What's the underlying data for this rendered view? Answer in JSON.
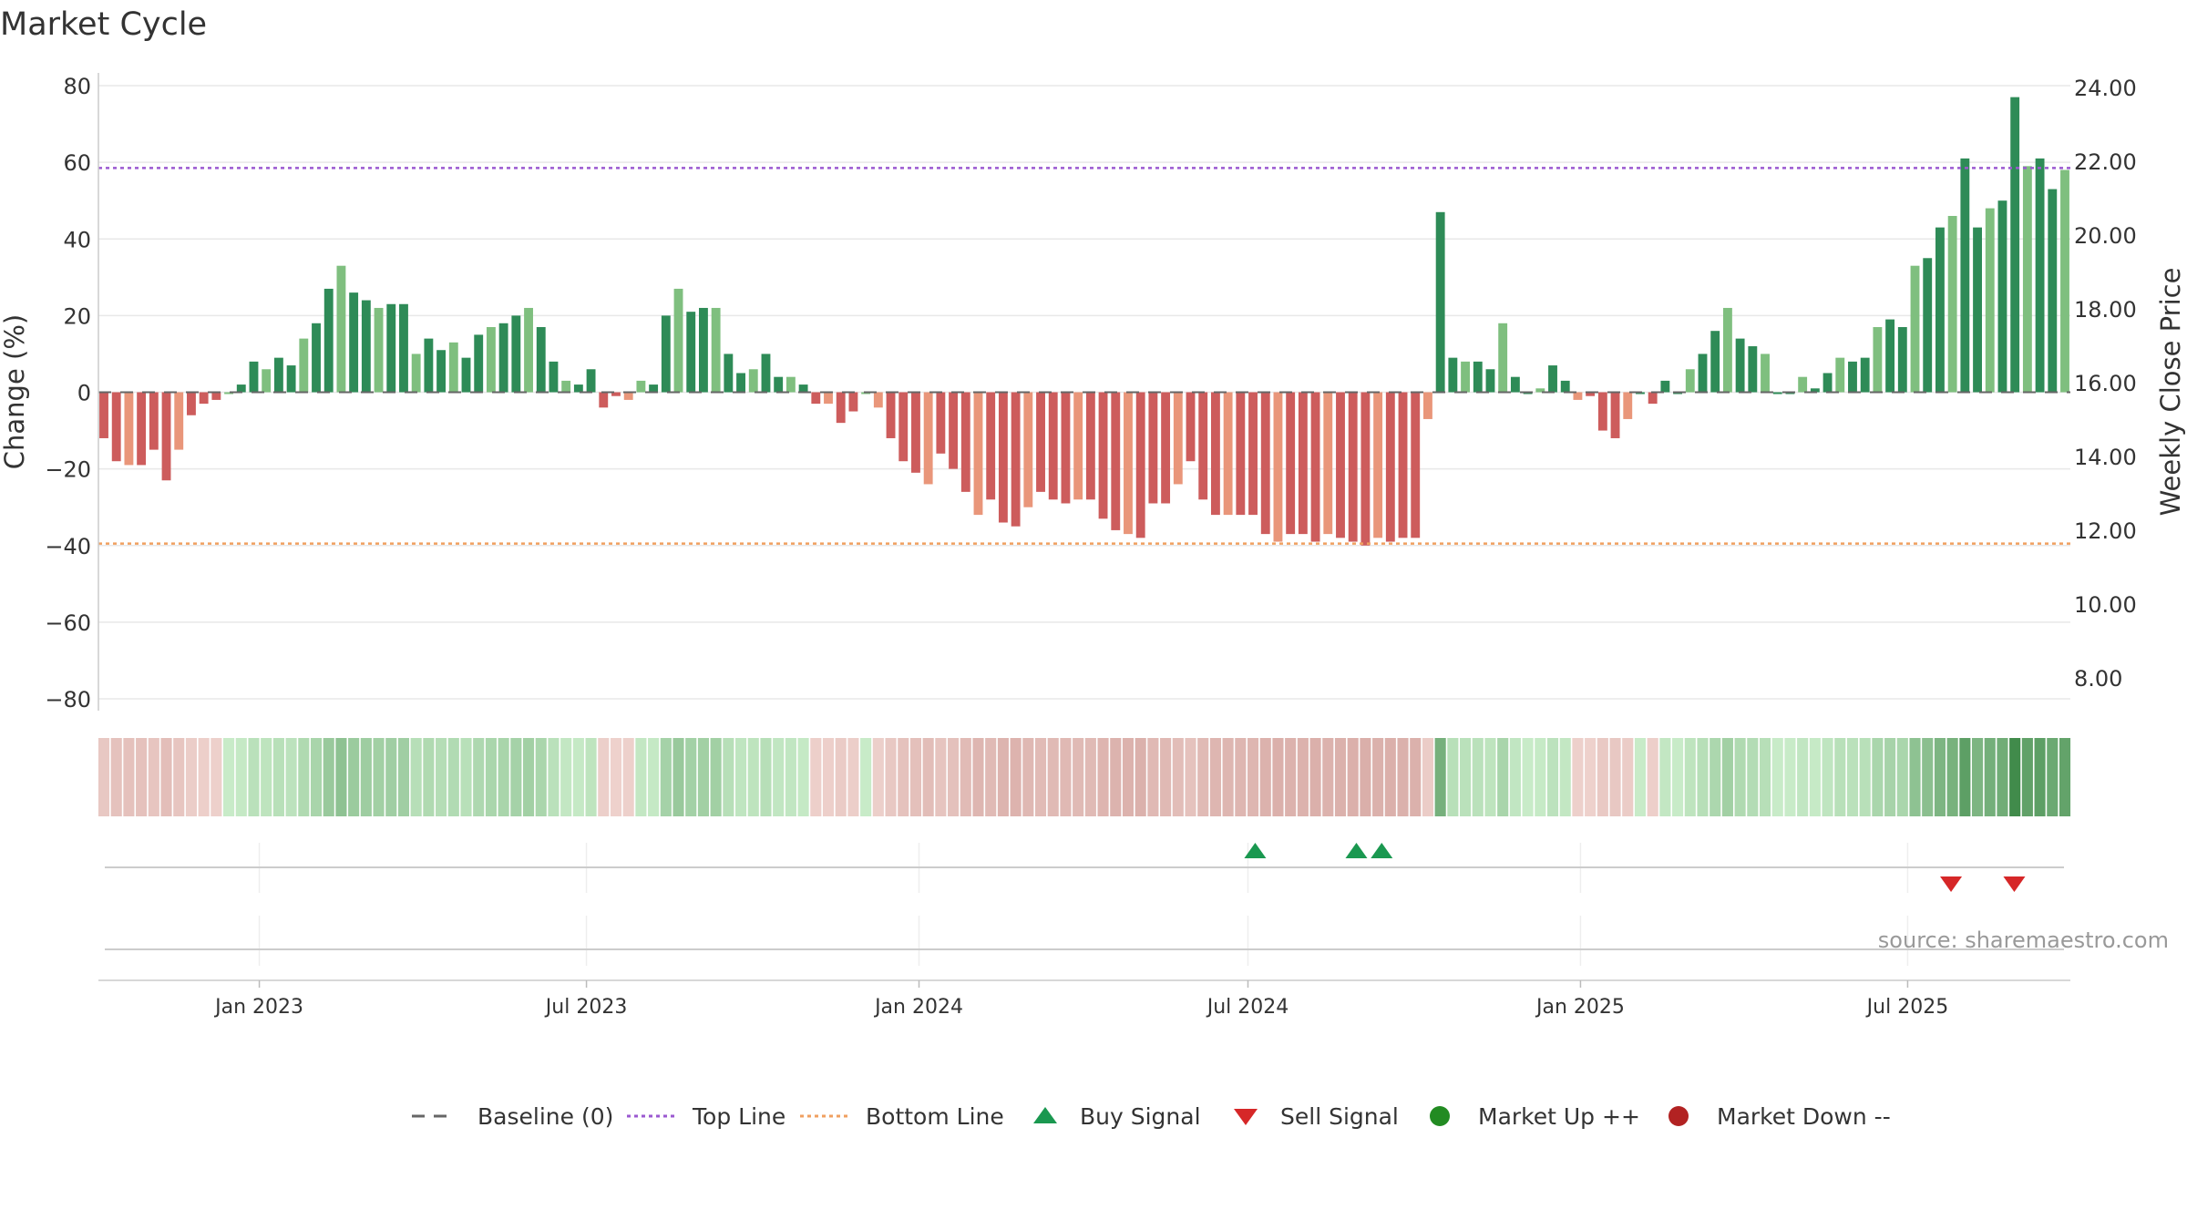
{
  "chart_data": {
    "type": "bar",
    "title": "Market Cycle",
    "ylabel": "Change (%)",
    "y2label": "Weekly Close Price",
    "ylim": [
      -80,
      80
    ],
    "y2lim": [
      8,
      24
    ],
    "yticks": [
      "80",
      "60",
      "40",
      "20",
      "0",
      "−20",
      "−40",
      "−60",
      "−80"
    ],
    "y2ticks": [
      "24.00",
      "22.00",
      "20.00",
      "18.00",
      "16.00",
      "14.00",
      "12.00",
      "10.00",
      "8.00"
    ],
    "x_start": "2022-10-07",
    "x_step_days": 7,
    "x_end": "2025-09-26",
    "xticks": [
      {
        "label": "Jan 2023",
        "date": "2023-01-01"
      },
      {
        "label": "Jul 2023",
        "date": "2023-07-01"
      },
      {
        "label": "Jan 2024",
        "date": "2024-01-01"
      },
      {
        "label": "Jul 2024",
        "date": "2024-07-01"
      },
      {
        "label": "Jan 2025",
        "date": "2025-01-01"
      },
      {
        "label": "Jul 2025",
        "date": "2025-07-01"
      }
    ],
    "top_line": 58.5,
    "bottom_line": -39.5,
    "values": [
      -12,
      -18,
      -19,
      -19,
      -15,
      -23,
      -15,
      -6,
      -3,
      -2,
      0,
      2,
      8,
      6,
      9,
      7,
      14,
      18,
      27,
      33,
      26,
      24,
      22,
      23,
      23,
      10,
      14,
      11,
      13,
      9,
      15,
      17,
      18,
      20,
      22,
      17,
      8,
      3,
      2,
      6,
      -4,
      -1,
      -2,
      3,
      2,
      20,
      27,
      21,
      22,
      22,
      10,
      5,
      6,
      10,
      4,
      4,
      2,
      -3,
      -3,
      -8,
      -5,
      0,
      -4,
      -12,
      -18,
      -21,
      -24,
      -16,
      -20,
      -26,
      -32,
      -28,
      -34,
      -35,
      -30,
      -26,
      -28,
      -29,
      -28,
      -28,
      -33,
      -36,
      -37,
      -38,
      -29,
      -29,
      -24,
      -18,
      -28,
      -32,
      -32,
      -32,
      -32,
      -37,
      -39,
      -37,
      -37,
      -39,
      -37,
      -38,
      -39,
      -40,
      -38,
      -39,
      -38,
      -38,
      -7,
      47,
      9,
      8,
      8,
      6,
      18,
      4,
      0,
      1,
      7,
      3,
      -2,
      -1,
      -10,
      -12,
      -7,
      0,
      -3,
      3,
      0,
      6,
      10,
      16,
      22,
      14,
      12,
      10,
      0,
      0,
      4,
      1,
      5,
      9,
      8,
      9,
      17,
      19,
      17,
      33,
      35,
      43,
      46,
      61,
      43,
      48,
      50,
      77,
      59,
      61,
      53,
      58
    ],
    "buy_signals": [
      "2024-07-05",
      "2024-08-30",
      "2024-09-13"
    ],
    "sell_signals": [
      "2025-07-25",
      "2025-08-29"
    ],
    "legend": [
      {
        "label": "Baseline (0)",
        "marker": "dash",
        "color": "#666666"
      },
      {
        "label": "Top Line",
        "marker": "dotted",
        "color": "#9b59d0"
      },
      {
        "label": "Bottom Line",
        "marker": "dotted",
        "color": "#f0a060"
      },
      {
        "label": "Buy Signal",
        "marker": "triangle-up",
        "color": "#1a9850"
      },
      {
        "label": "Sell Signal",
        "marker": "triangle-down",
        "color": "#d62728"
      },
      {
        "label": "Market Up ++",
        "marker": "circle",
        "color": "#228b22"
      },
      {
        "label": "Market Down --",
        "marker": "circle",
        "color": "#b22222"
      }
    ],
    "source": "source: sharemaestro.com",
    "colors": {
      "up_strong": "#2e8b57",
      "up_light": "#7fbf7f",
      "down_strong": "#cd5c5c",
      "down_light": "#e9967a",
      "grid": "#e8e8e8"
    }
  }
}
